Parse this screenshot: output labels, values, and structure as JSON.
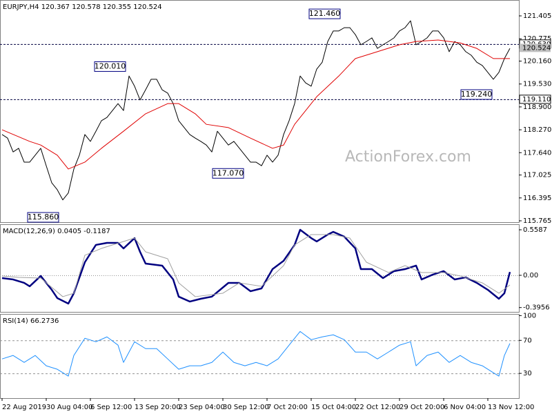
{
  "chart_data": [
    {
      "type": "line",
      "title": "EURJPY,H4  120.367 120.578 120.355 120.524",
      "watermark": "ActionForex.com",
      "xlim": [
        -0.375,
        93.625
      ],
      "ylim": [
        115.727,
        121.842
      ],
      "yticks": [
        121.405,
        120.775,
        {
          "value": 120.16,
          "label": "120.160"
        },
        {
          "value": 119.53,
          "label": "119.530"
        },
        {
          "value": 118.9,
          "label": "118.900"
        },
        {
          "value": 118.27,
          "label": "118.270"
        },
        {
          "value": 117.64,
          "label": "117.640"
        },
        117.025,
        116.395,
        115.765
      ],
      "levels": [
        {
          "value": 120.63,
          "label": "120.630"
        },
        {
          "value": 119.11,
          "label": "119.110"
        }
      ],
      "last": 120.524,
      "annotations": [
        {
          "value": 121.46,
          "label": "121.460"
        },
        {
          "value": 120.01,
          "label": "120.010"
        },
        {
          "value": 117.07,
          "label": "117.070"
        },
        {
          "value": 115.86,
          "label": "115.860"
        },
        {
          "value": 119.24,
          "label": "119.240"
        }
      ],
      "series": [
        {
          "color": "#000000",
          "values": [
            118.14,
            118.04,
            117.66,
            117.76,
            117.38,
            117.38,
            117.57,
            117.76,
            117.28,
            116.81,
            116.62,
            116.34,
            116.53,
            117.19,
            117.57,
            118.14,
            117.95,
            118.23,
            118.52,
            118.61,
            118.8,
            118.99,
            118.8,
            119.75,
            119.47,
            119.09,
            119.37,
            119.66,
            119.66,
            119.37,
            119.28,
            118.99,
            118.52,
            118.33,
            118.14,
            118.04,
            117.95,
            117.85,
            117.66,
            118.23,
            118.04,
            117.85,
            117.95,
            117.76,
            117.57,
            117.38,
            117.38,
            117.28,
            117.57,
            117.38,
            117.57,
            118.14,
            118.52,
            118.99,
            119.75,
            119.56,
            119.47,
            119.94,
            120.13,
            120.7,
            120.99,
            120.99,
            121.08,
            121.08,
            120.89,
            120.61,
            120.7,
            120.8,
            120.51,
            120.61,
            120.7,
            120.8,
            120.99,
            121.08,
            121.27,
            120.61,
            120.7,
            120.8,
            120.99,
            120.99,
            120.8,
            120.42,
            120.7,
            120.61,
            120.42,
            120.32,
            120.13,
            120.04,
            119.85,
            119.66,
            119.85,
            120.23,
            120.51
          ]
        },
        {
          "color": "#e00000",
          "x": [
            0,
            5,
            7,
            10,
            12,
            15,
            18,
            22,
            26,
            30,
            32,
            35,
            37,
            41,
            45,
            49,
            51,
            53,
            57,
            61,
            64,
            68,
            72,
            75,
            79,
            83,
            86,
            89,
            92
          ],
          "values": [
            118.27,
            117.95,
            117.85,
            117.57,
            117.19,
            117.38,
            117.76,
            118.23,
            118.71,
            118.99,
            118.99,
            118.71,
            118.42,
            118.33,
            118.04,
            117.76,
            117.85,
            118.42,
            119.18,
            119.75,
            120.23,
            120.42,
            120.61,
            120.7,
            120.74,
            120.66,
            120.51,
            120.23,
            120.23
          ]
        }
      ]
    },
    {
      "type": "line",
      "title": "MACD(12,26,9) 0.0405 -0.1187",
      "xlim": [
        -0.375,
        93.625
      ],
      "ylim": [
        -0.4488,
        0.6266
      ],
      "yticks": [
        0.5587,
        {
          "value": 0,
          "label": "0.00"
        },
        -0.3956
      ],
      "levels": [
        0
      ],
      "series": [
        {
          "color": "#000080",
          "x": [
            0,
            2,
            4,
            5,
            7,
            9,
            10,
            12,
            13,
            15,
            17,
            19,
            21,
            22,
            24,
            25,
            26,
            29,
            31,
            32,
            34,
            36,
            38,
            41,
            43,
            45,
            47,
            49,
            51,
            53,
            54,
            56,
            57,
            59,
            60,
            62,
            64,
            65,
            67,
            69,
            71,
            73,
            75,
            76,
            78,
            80,
            82,
            84,
            86,
            88,
            90,
            91,
            92
          ],
          "values": [
            -0.034,
            -0.051,
            -0.093,
            -0.135,
            -0.008,
            -0.178,
            -0.279,
            -0.347,
            -0.22,
            0.161,
            0.373,
            0.398,
            0.398,
            0.33,
            0.457,
            0.288,
            0.144,
            0.119,
            -0.051,
            -0.262,
            -0.322,
            -0.288,
            -0.262,
            -0.093,
            -0.093,
            -0.195,
            -0.161,
            0.076,
            0.178,
            0.373,
            0.559,
            0.457,
            0.415,
            0.5,
            0.533,
            0.474,
            0.33,
            0.076,
            0.076,
            -0.034,
            0.051,
            0.076,
            0.119,
            -0.051,
            0.008,
            0.051,
            -0.051,
            -0.025,
            -0.093,
            -0.178,
            -0.288,
            -0.22,
            0.0405
          ]
        },
        {
          "color": "#a0a0a0",
          "x": [
            0,
            3,
            7,
            11,
            13,
            15,
            18,
            22,
            24,
            26,
            30,
            32,
            35,
            40,
            43,
            47,
            51,
            53,
            56,
            60,
            63,
            66,
            70,
            73,
            76,
            80,
            83,
            87,
            90,
            92
          ],
          "values": [
            -0.008,
            -0.025,
            -0.034,
            -0.262,
            -0.22,
            0.246,
            0.33,
            0.415,
            0.457,
            0.288,
            0.203,
            -0.093,
            -0.262,
            -0.22,
            -0.093,
            -0.135,
            0.119,
            0.373,
            0.5,
            0.5,
            0.457,
            0.161,
            0.034,
            0.119,
            0.034,
            0.034,
            -0.008,
            -0.093,
            -0.22,
            -0.1187
          ]
        }
      ]
    },
    {
      "type": "line",
      "title": "RSI(14) 66.2736",
      "xlim": [
        -0.375,
        93.625
      ],
      "ylim": [
        0,
        102
      ],
      "yticks": [
        100,
        70,
        30
      ],
      "levels": [
        70,
        30
      ],
      "xticks": [
        {
          "value": 0,
          "label": "22 Aug 2019"
        },
        {
          "value": 8,
          "label": "30 Aug 04:00"
        },
        {
          "value": 16,
          "label": "6 Sep 12:00"
        },
        {
          "value": 24,
          "label": "13 Sep 20:00"
        },
        {
          "value": 32,
          "label": "23 Sep 04:00"
        },
        {
          "value": 40,
          "label": "30 Sep 12:00"
        },
        {
          "value": 48,
          "label": "7 Oct 20:00"
        },
        {
          "value": 56,
          "label": "15 Oct 04:00"
        },
        {
          "value": 64,
          "label": "22 Oct 12:00"
        },
        {
          "value": 72,
          "label": "29 Oct 20:00"
        },
        {
          "value": 80,
          "label": "6 Nov 04:00"
        },
        {
          "value": 88,
          "label": "13 Nov 12:00"
        }
      ],
      "series": [
        {
          "color": "#1e90ff",
          "x": [
            0,
            2,
            4,
            6,
            8,
            10,
            12,
            13,
            15,
            17,
            19,
            21,
            22,
            24,
            26,
            28,
            30,
            32,
            34,
            36,
            38,
            40,
            42,
            44,
            46,
            48,
            50,
            52,
            54,
            56,
            58,
            60,
            62,
            64,
            66,
            68,
            70,
            72,
            74,
            75,
            77,
            79,
            81,
            83,
            85,
            87,
            89,
            90,
            91,
            92
          ],
          "values": [
            47.5,
            51.7,
            43.3,
            51.7,
            39.2,
            35,
            26.7,
            51.7,
            72.5,
            68.3,
            74.2,
            64.2,
            43.3,
            68.3,
            60,
            60,
            47.5,
            35,
            39.2,
            39.2,
            43.3,
            55.8,
            43.3,
            39.2,
            43.3,
            39.2,
            47.5,
            64.2,
            80.8,
            70.8,
            74.2,
            76.7,
            70.8,
            55.8,
            55.8,
            47.5,
            55.8,
            64.2,
            68.3,
            39.2,
            51.7,
            55.8,
            43.3,
            51.7,
            43.3,
            39.2,
            30.8,
            26.7,
            51.7,
            66.2736
          ]
        }
      ]
    }
  ]
}
